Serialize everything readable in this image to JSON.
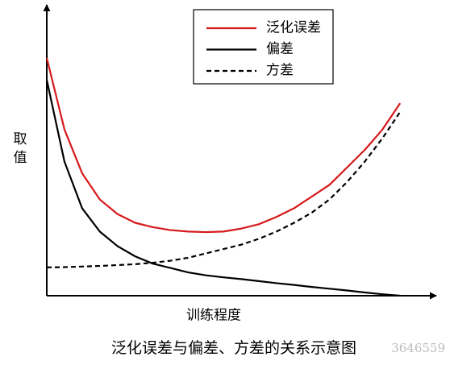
{
  "chart_data": {
    "type": "line",
    "x_label": "训练程度",
    "y_label": "取值",
    "caption": "泛化误差与偏差、方差的关系示意图",
    "watermark": "3646559",
    "x": [
      0,
      5,
      10,
      15,
      20,
      25,
      30,
      35,
      40,
      45,
      50,
      55,
      60,
      65,
      70,
      75,
      80,
      85,
      90,
      95,
      100
    ],
    "xlim": [
      0,
      110
    ],
    "ylim": [
      0,
      100
    ],
    "legend": "upper-right",
    "series": [
      {
        "name": "泛化误差",
        "color": "#d7191c",
        "style": "solid",
        "values": [
          81.5,
          57,
          42,
          33,
          28,
          25,
          23.5,
          22.5,
          22,
          21.8,
          22,
          23,
          24.5,
          27,
          30,
          34,
          38,
          44,
          50,
          57,
          66
        ]
      },
      {
        "name": "偏差",
        "color": "#000000",
        "style": "solid",
        "values": [
          74,
          46,
          30,
          22,
          17,
          13.5,
          11,
          9.5,
          8,
          7,
          6.3,
          5.7,
          5,
          4.3,
          3.7,
          3,
          2.4,
          1.8,
          1.1,
          0.5,
          0
        ]
      },
      {
        "name": "方差",
        "color": "#000000",
        "style": "dashed",
        "values": [
          9.7,
          9.8,
          10,
          10.2,
          10.5,
          10.8,
          11.3,
          12,
          13,
          14.5,
          16,
          17.5,
          19.5,
          22,
          25,
          28.5,
          33,
          39,
          46,
          54,
          63
        ]
      }
    ]
  }
}
